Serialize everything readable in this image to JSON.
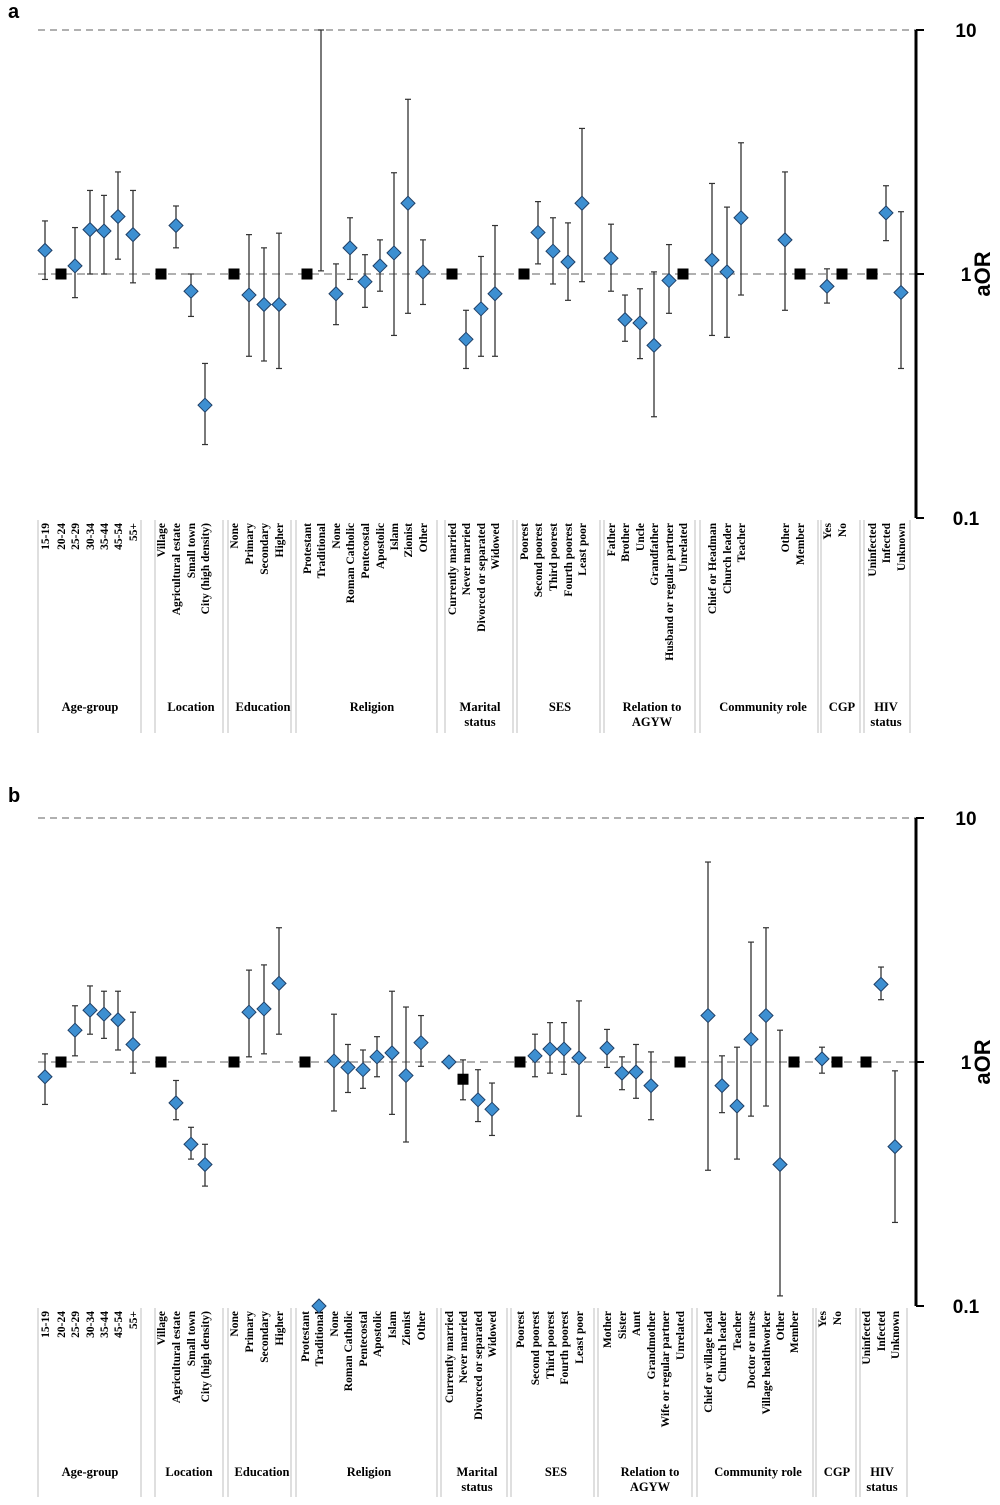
{
  "chart_data": [
    {
      "panel_label": "a",
      "type": "scatter",
      "ylabel": "aOR",
      "yscale": "log",
      "ylim": [
        0.1,
        10
      ],
      "yticks": [
        "10",
        "1",
        "0.1"
      ],
      "groups": [
        {
          "label": "Age-group",
          "categories": [
            "15-19",
            "20-24",
            "25-29",
            "30-34",
            "35-44",
            "45-54",
            "55+"
          ],
          "values": [
            1.25,
            1,
            1.08,
            1.52,
            1.5,
            1.72,
            1.45
          ],
          "lower": [
            0.95,
            null,
            0.8,
            1.0,
            1.0,
            1.15,
            0.92
          ],
          "upper": [
            1.65,
            null,
            1.55,
            2.2,
            2.1,
            2.62,
            2.2
          ],
          "reference": [
            1
          ]
        },
        {
          "label": "Location",
          "categories": [
            "Village",
            "Agricultural estate",
            "Small town",
            "City (high density)"
          ],
          "values": [
            1,
            1.58,
            0.85,
            0.29
          ],
          "lower": [
            null,
            1.28,
            0.67,
            0.2
          ],
          "upper": [
            null,
            1.9,
            1.0,
            0.43
          ],
          "reference": [
            0
          ]
        },
        {
          "label": "Education",
          "categories": [
            "None",
            "Primary",
            "Secondary",
            "Higher"
          ],
          "values": [
            1,
            0.82,
            0.75,
            0.75
          ],
          "lower": [
            null,
            0.46,
            0.44,
            0.41
          ],
          "upper": [
            null,
            1.45,
            1.28,
            1.47
          ],
          "reference": [
            0
          ]
        },
        {
          "label": "Religion",
          "categories": [
            "Protestant",
            "Traditional",
            "None",
            "Roman Catholic",
            "Pentecostal",
            "Apostolic",
            "Islam",
            "Zionist",
            "Other"
          ],
          "values": [
            1,
            null,
            0.83,
            1.28,
            0.93,
            1.08,
            1.22,
            1.95,
            1.02
          ],
          "lower": [
            null,
            1.03,
            0.62,
            0.95,
            0.73,
            0.85,
            0.56,
            0.69,
            0.75
          ],
          "upper": [
            null,
            10,
            1.1,
            1.7,
            1.2,
            1.38,
            2.6,
            5.2,
            1.38
          ],
          "reference": [
            0
          ]
        },
        {
          "label": "Marital status",
          "categories": [
            "Currently married",
            "Never married",
            "Divorced or separated",
            "Widowed"
          ],
          "values": [
            1,
            0.54,
            0.72,
            0.83
          ],
          "lower": [
            null,
            0.41,
            0.46,
            0.46
          ],
          "upper": [
            null,
            0.71,
            1.18,
            1.58
          ],
          "reference": [
            0
          ]
        },
        {
          "label": "SES",
          "categories": [
            "Poorest",
            "Second poorest",
            "Third poorest",
            "Fourth poorest",
            "Least poor"
          ],
          "values": [
            1,
            1.48,
            1.24,
            1.12,
            1.95
          ],
          "lower": [
            null,
            1.1,
            0.91,
            0.78,
            0.93
          ],
          "upper": [
            null,
            1.98,
            1.7,
            1.62,
            3.95
          ],
          "reference": [
            0
          ]
        },
        {
          "label": "Relation to AGYW",
          "categories": [
            "Father",
            "Brother",
            "Uncle",
            "Grandfather",
            "Husband or regular partner",
            "Unrelated"
          ],
          "values": [
            1.16,
            0.65,
            0.63,
            0.51,
            0.94,
            1
          ],
          "lower": [
            0.85,
            0.53,
            0.45,
            0.26,
            0.69,
            null
          ],
          "upper": [
            1.6,
            0.82,
            0.87,
            1.02,
            1.32,
            null
          ],
          "reference": [
            5
          ]
        },
        {
          "label": "Community role",
          "categories": [
            "Chief or Headman",
            "Church leader",
            "Teacher",
            "",
            "",
            "Other",
            "Member"
          ],
          "values": [
            1.14,
            1.02,
            1.7,
            null,
            null,
            1.38,
            1
          ],
          "lower": [
            0.56,
            0.55,
            0.82,
            null,
            null,
            0.71,
            null
          ],
          "upper": [
            2.35,
            1.88,
            3.45,
            null,
            null,
            2.62,
            null
          ],
          "reference": [
            6
          ]
        },
        {
          "label": "CGP",
          "categories": [
            "Yes",
            "No"
          ],
          "values": [
            0.89,
            1
          ],
          "lower": [
            0.76,
            null
          ],
          "upper": [
            1.05,
            null
          ],
          "reference": [
            1
          ]
        },
        {
          "label": "HIV status",
          "categories": [
            "Uninfected",
            "Infected",
            "Unknown"
          ],
          "values": [
            1,
            1.78,
            0.84
          ],
          "lower": [
            null,
            1.37,
            0.41
          ],
          "upper": [
            null,
            2.3,
            1.8
          ],
          "reference": [
            0
          ]
        }
      ]
    },
    {
      "panel_label": "b",
      "type": "scatter",
      "ylabel": "aOR",
      "yscale": "log",
      "ylim": [
        0.1,
        10
      ],
      "yticks": [
        "10",
        "1",
        "0.1"
      ],
      "groups": [
        {
          "label": "Age-group",
          "categories": [
            "15-19",
            "20-24",
            "25-29",
            "30-34",
            "35-44",
            "45-54",
            "55+"
          ],
          "values": [
            0.87,
            1,
            1.35,
            1.63,
            1.57,
            1.49,
            1.18
          ],
          "lower": [
            0.67,
            null,
            1.06,
            1.3,
            1.25,
            1.12,
            0.9
          ],
          "upper": [
            1.08,
            null,
            1.7,
            2.05,
            1.95,
            1.95,
            1.6
          ],
          "reference": [
            1
          ]
        },
        {
          "label": "Location",
          "categories": [
            "Village",
            "Agricultural estate",
            "Small town",
            "City (high density)"
          ],
          "values": [
            1,
            0.68,
            0.46,
            0.38
          ],
          "lower": [
            null,
            0.58,
            0.4,
            0.31
          ],
          "upper": [
            null,
            0.84,
            0.54,
            0.46
          ],
          "reference": [
            0
          ]
        },
        {
          "label": "Education",
          "categories": [
            "None",
            "Primary",
            "Secondary",
            "Higher"
          ],
          "values": [
            1,
            1.6,
            1.65,
            2.1
          ],
          "lower": [
            null,
            1.05,
            1.08,
            1.3
          ],
          "upper": [
            null,
            2.38,
            2.5,
            3.55
          ],
          "reference": [
            0
          ]
        },
        {
          "label": "Religion",
          "categories": [
            "Protestant",
            "Traditional",
            "None",
            "Roman Catholic",
            "Pentecostal",
            "Apostolic",
            "Islam",
            "Zionist",
            "Other"
          ],
          "values": [
            1,
            0.1,
            1.01,
            0.95,
            0.93,
            1.05,
            1.09,
            0.88,
            1.2
          ],
          "lower": [
            null,
            null,
            0.63,
            0.75,
            0.78,
            0.87,
            0.61,
            0.47,
            0.96
          ],
          "upper": [
            null,
            0.7,
            1.57,
            1.18,
            1.12,
            1.27,
            1.95,
            1.68,
            1.55
          ],
          "reference": [
            0
          ]
        },
        {
          "label": "Marital status",
          "categories": [
            "Currently married",
            "Never married",
            "Divorced or separated",
            "Widowed"
          ],
          "values": [
            1,
            0.85,
            0.7,
            0.64
          ],
          "lower": [
            null,
            0.7,
            0.57,
            0.5
          ],
          "upper": [
            null,
            1.02,
            0.93,
            0.82
          ],
          "reference": [
            1
          ]
        },
        {
          "label": "SES",
          "categories": [
            "Poorest",
            "Second poorest",
            "Third poorest",
            "Fourth poorest",
            "Least poor"
          ],
          "values": [
            1,
            1.06,
            1.13,
            1.13,
            1.04
          ],
          "lower": [
            null,
            0.87,
            0.9,
            0.89,
            0.6
          ],
          "upper": [
            null,
            1.3,
            1.45,
            1.45,
            1.78
          ],
          "reference": [
            0
          ]
        },
        {
          "label": "Relation to AGYW",
          "categories": [
            "Mother",
            "Sister",
            "Aunt",
            "Grandmother",
            "Wife or regular partner",
            "Unrelated"
          ],
          "values": [
            1.14,
            0.9,
            0.91,
            0.8,
            null,
            1
          ],
          "lower": [
            0.95,
            0.77,
            0.71,
            0.58,
            null,
            null
          ],
          "upper": [
            1.36,
            1.05,
            1.18,
            1.1,
            null,
            null
          ],
          "reference": [
            5
          ]
        },
        {
          "label": "Community role",
          "categories": [
            "Chief or village head",
            "Church leader",
            "Teacher",
            "Doctor or nurse",
            "Village healthworker",
            "Other",
            "Member"
          ],
          "values": [
            1.55,
            0.8,
            0.66,
            1.24,
            1.55,
            0.38,
            1
          ],
          "lower": [
            0.36,
            0.62,
            0.4,
            0.6,
            0.66,
            0.11,
            null
          ],
          "upper": [
            6.6,
            1.06,
            1.15,
            3.1,
            3.55,
            1.35,
            null
          ],
          "reference": [
            6
          ]
        },
        {
          "label": "CGP",
          "categories": [
            "Yes",
            "No"
          ],
          "values": [
            1.03,
            1
          ],
          "lower": [
            0.9,
            null
          ],
          "upper": [
            1.15,
            null
          ],
          "reference": [
            1
          ]
        },
        {
          "label": "HIV status",
          "categories": [
            "Uninfected",
            "Infected",
            "Unknown"
          ],
          "values": [
            1,
            2.08,
            0.45
          ],
          "lower": [
            null,
            1.8,
            0.22
          ],
          "upper": [
            null,
            2.45,
            0.92
          ],
          "reference": [
            0
          ]
        }
      ]
    }
  ],
  "colors": {
    "marker": "#3d8fd1",
    "marker_stroke": "#1f3f66",
    "reference": "#000000",
    "errorbar": "#333333",
    "gridline": "#808080",
    "separator": "#bfbfbf"
  }
}
